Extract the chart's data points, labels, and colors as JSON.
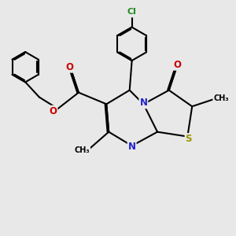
{
  "bg_color": "#e8e8e8",
  "bond_color": "#000000",
  "bond_width": 1.5,
  "figsize": [
    3.0,
    3.0
  ],
  "dpi": 100,
  "atom_colors": {
    "N": "#2222CC",
    "S": "#999900",
    "O": "#CC0000",
    "Cl": "#228B22",
    "C": "#000000"
  }
}
